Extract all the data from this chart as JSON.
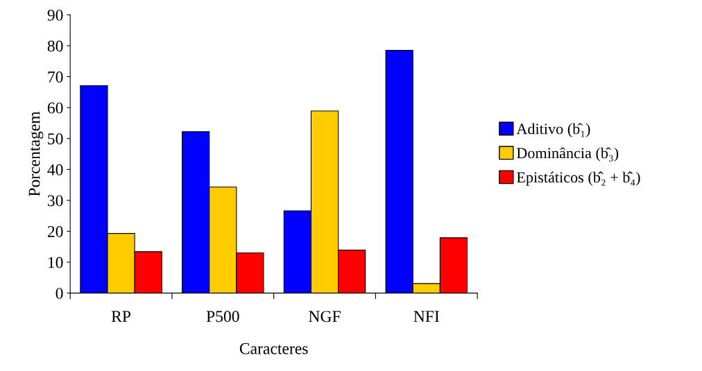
{
  "chart_data": {
    "type": "bar",
    "xlabel": "Caracteres",
    "ylabel": "Porcentagem",
    "categories": [
      "RP",
      "P500",
      "NGF",
      "NFI"
    ],
    "series": [
      {
        "name": "Aditivo (b̂₁)",
        "color": "#0000ff",
        "values": [
          67.1,
          52.2,
          26.6,
          78.5
        ]
      },
      {
        "name": "Dominância (b̂₃)",
        "color": "#ffcc00",
        "values": [
          19.3,
          34.3,
          58.9,
          3.1
        ]
      },
      {
        "name": "Epistáticos (b̂₂ + b̂₄)",
        "color": "#ff0000",
        "values": [
          13.4,
          13.0,
          13.9,
          17.9
        ]
      }
    ],
    "ylim": [
      0,
      90
    ],
    "yticks": [
      0,
      10,
      20,
      30,
      40,
      50,
      60,
      70,
      80,
      90
    ],
    "grid": false,
    "legend": "right"
  }
}
